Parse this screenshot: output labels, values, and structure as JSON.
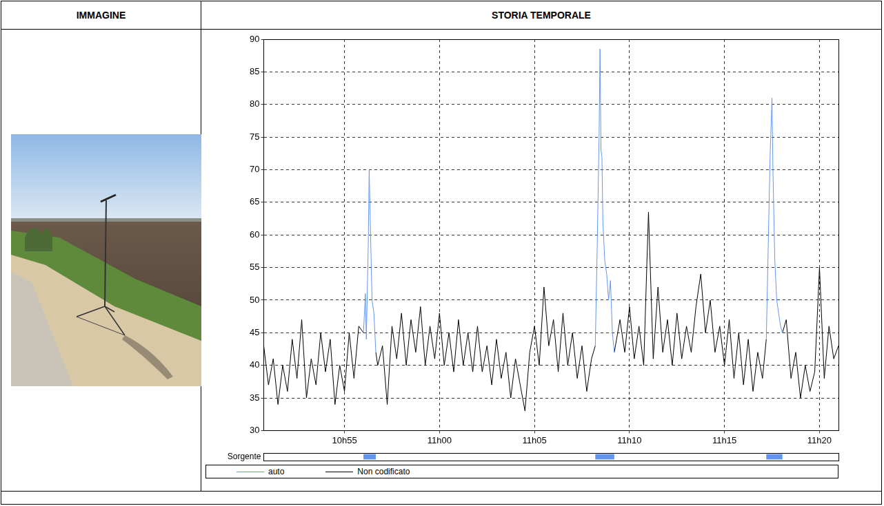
{
  "columns": [
    "IMMAGINE",
    "STORIA TEMPORALE"
  ],
  "chart_data": {
    "type": "line",
    "x": [
      650.75,
      651,
      651.25,
      651.5,
      651.75,
      652,
      652.25,
      652.5,
      652.75,
      653,
      653.25,
      653.5,
      653.75,
      654,
      654.25,
      654.5,
      654.75,
      655,
      655.25,
      655.5,
      655.75,
      656,
      656.1,
      656.15,
      656.25,
      656.3,
      656.35,
      656.45,
      656.55,
      656.65,
      656.75,
      657,
      657.25,
      657.5,
      657.75,
      658,
      658.25,
      658.5,
      658.75,
      659,
      659.25,
      659.5,
      659.75,
      660,
      660.25,
      660.5,
      660.75,
      661,
      661.25,
      661.5,
      661.75,
      662,
      662.25,
      662.5,
      662.75,
      663,
      663.25,
      663.5,
      663.75,
      664,
      664.25,
      664.5,
      664.75,
      665,
      665.25,
      665.5,
      665.75,
      666,
      666.25,
      666.5,
      666.75,
      667,
      667.25,
      667.5,
      667.75,
      668,
      668.2,
      668.3,
      668.4,
      668.45,
      668.5,
      668.55,
      668.6,
      668.7,
      668.8,
      668.9,
      669,
      669.1,
      669.2,
      669.5,
      669.75,
      670,
      670.25,
      670.5,
      670.75,
      671,
      671.25,
      671.5,
      671.75,
      672,
      672.25,
      672.5,
      672.75,
      673,
      673.25,
      673.5,
      673.75,
      674,
      674.25,
      674.5,
      674.75,
      675,
      675.25,
      675.5,
      675.75,
      676,
      676.25,
      676.5,
      676.75,
      677,
      677.2,
      677.3,
      677.4,
      677.5,
      677.55,
      677.65,
      677.75,
      677.85,
      677.95,
      678.05,
      678.25,
      678.5,
      678.75,
      679,
      679.25,
      679.5,
      679.75,
      680,
      680.25,
      680.5,
      680.75,
      681
    ],
    "series": [
      {
        "name": "auto",
        "color": "#6495ed",
        "values": [
          null,
          null,
          null,
          null,
          null,
          null,
          null,
          null,
          null,
          null,
          null,
          null,
          null,
          null,
          null,
          null,
          null,
          null,
          null,
          null,
          null,
          45,
          51,
          44,
          58,
          70,
          63,
          50,
          48,
          42,
          null,
          null,
          null,
          null,
          null,
          null,
          null,
          null,
          null,
          null,
          null,
          null,
          null,
          null,
          null,
          null,
          null,
          null,
          null,
          null,
          null,
          null,
          null,
          null,
          null,
          null,
          null,
          null,
          null,
          null,
          null,
          null,
          null,
          null,
          null,
          null,
          null,
          null,
          null,
          null,
          null,
          null,
          null,
          null,
          null,
          null,
          43,
          58,
          75,
          88.5,
          73,
          72,
          62,
          56,
          54,
          50,
          53,
          45,
          42,
          null,
          null,
          null,
          null,
          null,
          null,
          null,
          null,
          null,
          null,
          null,
          null,
          null,
          null,
          null,
          null,
          null,
          null,
          null,
          null,
          null,
          null,
          null,
          null,
          null,
          null,
          null,
          null,
          null,
          null,
          null,
          44,
          58,
          72,
          81,
          70,
          56,
          50,
          48,
          46,
          45,
          null,
          null,
          null,
          null,
          null,
          null,
          null,
          null,
          null,
          null,
          null,
          null
        ]
      },
      {
        "name": "Non codificato",
        "color": "#000000",
        "values": [
          43,
          37,
          41,
          34,
          40,
          36,
          44,
          38,
          47,
          35,
          41,
          37,
          45,
          39,
          44,
          34,
          40,
          36,
          45,
          38,
          46,
          45,
          null,
          null,
          null,
          null,
          null,
          null,
          null,
          42,
          40,
          43,
          34,
          46,
          41,
          48,
          40,
          47,
          42,
          49,
          40,
          46,
          41,
          48,
          40,
          45,
          39,
          47,
          40,
          45,
          39,
          46,
          39,
          43,
          37,
          44,
          38,
          42,
          35,
          41,
          37,
          33,
          42,
          46,
          40,
          52,
          43,
          47,
          39,
          48,
          40,
          45,
          38,
          43,
          36,
          41,
          43,
          null,
          null,
          null,
          null,
          null,
          null,
          null,
          null,
          null,
          null,
          null,
          42,
          47,
          42,
          49,
          41,
          46,
          40,
          63.5,
          41,
          52,
          42,
          47,
          40,
          48,
          41,
          46,
          42,
          49,
          54,
          45,
          50,
          42,
          46,
          40,
          47,
          38,
          45,
          37,
          44,
          36,
          42,
          38,
          44,
          null,
          null,
          null,
          null,
          null,
          null,
          null,
          null,
          45,
          47,
          38,
          42,
          35,
          40,
          36,
          39,
          55,
          38,
          46,
          41,
          43
        ]
      }
    ],
    "xlim": [
      650.75,
      681
    ],
    "xticks": [
      {
        "value": 655,
        "label": "10h55"
      },
      {
        "value": 660,
        "label": "11h00"
      },
      {
        "value": 665,
        "label": "11h05"
      },
      {
        "value": 670,
        "label": "11h10"
      },
      {
        "value": 675,
        "label": "11h15"
      },
      {
        "value": 680,
        "label": "11h20"
      }
    ],
    "ylim": [
      30,
      90
    ],
    "yticks": [
      30,
      35,
      40,
      45,
      50,
      55,
      60,
      65,
      70,
      75,
      80,
      85,
      90
    ],
    "grid": true,
    "legend": "bottom",
    "source_track": {
      "label": "Sorgente",
      "series": "auto",
      "periods": [
        [
          656,
          656.65
        ],
        [
          668.2,
          669.2
        ],
        [
          677.2,
          678.05
        ]
      ]
    }
  }
}
